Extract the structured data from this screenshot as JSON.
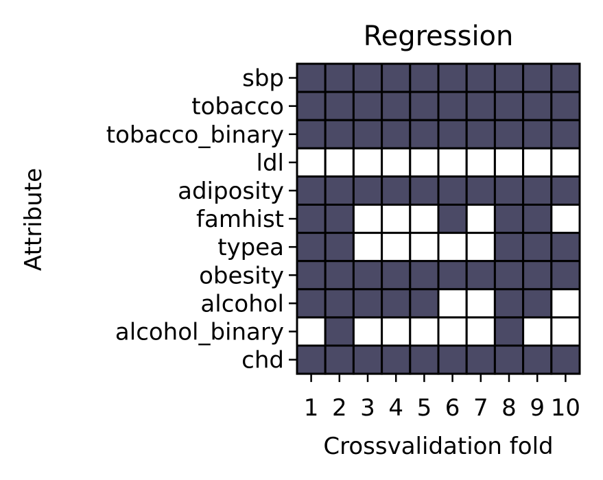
{
  "chart_data": {
    "type": "heatmap",
    "title": "Regression",
    "xlabel": "Crossvalidation fold",
    "ylabel": "Attribute",
    "x": [
      "1",
      "2",
      "3",
      "4",
      "5",
      "6",
      "7",
      "8",
      "9",
      "10"
    ],
    "y": [
      "sbp",
      "tobacco",
      "tobacco_binary",
      "ldl",
      "adiposity",
      "famhist",
      "typea",
      "obesity",
      "alcohol",
      "alcohol_binary",
      "chd"
    ],
    "values": [
      [
        1,
        1,
        1,
        1,
        1,
        1,
        1,
        1,
        1,
        1
      ],
      [
        1,
        1,
        1,
        1,
        1,
        1,
        1,
        1,
        1,
        1
      ],
      [
        1,
        1,
        1,
        1,
        1,
        1,
        1,
        1,
        1,
        1
      ],
      [
        0,
        0,
        0,
        0,
        0,
        0,
        0,
        0,
        0,
        0
      ],
      [
        1,
        1,
        1,
        1,
        1,
        1,
        1,
        1,
        1,
        1
      ],
      [
        1,
        1,
        0,
        0,
        0,
        1,
        0,
        1,
        1,
        0
      ],
      [
        1,
        1,
        0,
        0,
        0,
        0,
        0,
        1,
        1,
        1
      ],
      [
        1,
        1,
        1,
        1,
        1,
        1,
        1,
        1,
        1,
        1
      ],
      [
        1,
        1,
        1,
        1,
        1,
        0,
        0,
        1,
        1,
        0
      ],
      [
        0,
        1,
        0,
        0,
        0,
        0,
        0,
        1,
        0,
        0
      ],
      [
        1,
        1,
        1,
        1,
        1,
        1,
        1,
        1,
        1,
        1
      ]
    ],
    "colors": {
      "1": "#4b4a66",
      "0": "#ffffff",
      "edge": "#000000"
    }
  }
}
